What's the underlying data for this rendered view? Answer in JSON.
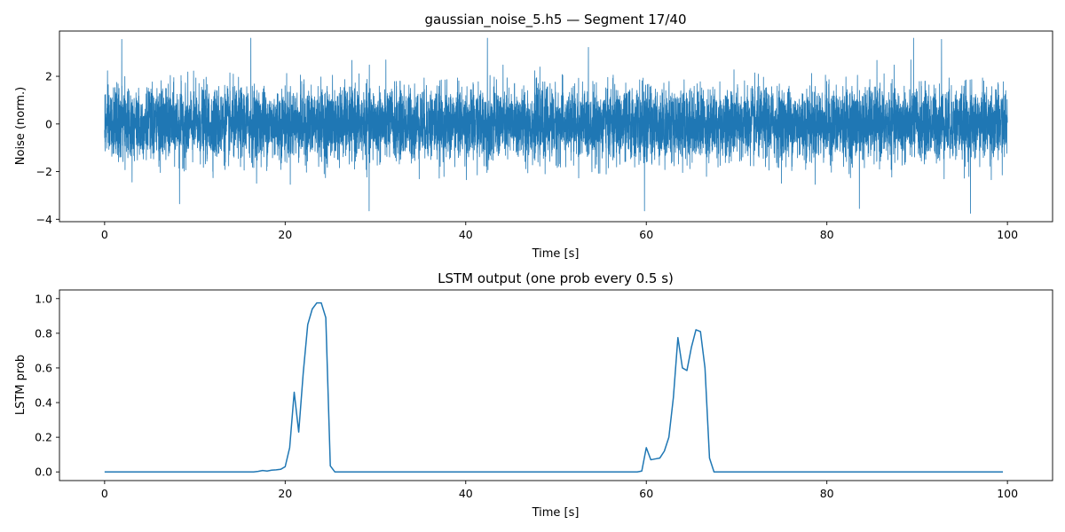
{
  "chart_data": [
    {
      "type": "line",
      "title": "gaussian_noise_5.h5 — Segment 17/40",
      "xlabel": "Time [s]",
      "ylabel": "Noise (norm.)",
      "xlim": [
        -5,
        105
      ],
      "ylim": [
        -4.1,
        3.9
      ],
      "xticks": [
        0,
        20,
        40,
        60,
        80,
        100
      ],
      "yticks": [
        -4,
        -2,
        0,
        2
      ],
      "grid": false,
      "color": "#1f77b4",
      "series": [
        {
          "x_start": 0,
          "x_end": 100,
          "distribution": "gaussian",
          "mean": 0,
          "std": 0.75,
          "min": -3.75,
          "max": 3.6,
          "peaks": [
            {
              "x": 1.9,
              "y": 3.55
            },
            {
              "x": 16.2,
              "y": 3.6
            },
            {
              "x": 42.4,
              "y": 3.6
            },
            {
              "x": 89.6,
              "y": 3.6
            },
            {
              "x": 92.7,
              "y": 3.55
            },
            {
              "x": 29.3,
              "y": -3.65
            },
            {
              "x": 59.8,
              "y": -3.65
            },
            {
              "x": 95.9,
              "y": -3.75
            },
            {
              "x": 83.6,
              "y": -3.55
            },
            {
              "x": 8.3,
              "y": -3.35
            }
          ]
        }
      ]
    },
    {
      "type": "line",
      "title": "LSTM output (one prob every 0.5 s)",
      "xlabel": "Time [s]",
      "ylabel": "LSTM prob",
      "xlim": [
        -5,
        105
      ],
      "ylim": [
        -0.05,
        1.05
      ],
      "xticks": [
        0,
        20,
        40,
        60,
        80,
        100
      ],
      "yticks": [
        0.0,
        0.2,
        0.4,
        0.6,
        0.8,
        1.0
      ],
      "ytick_labels": [
        "0.0",
        "0.2",
        "0.4",
        "0.6",
        "0.8",
        "1.0"
      ],
      "grid": false,
      "color": "#1f77b4",
      "series": [
        {
          "x": [
            0,
            16.5,
            17,
            17.5,
            18,
            18.5,
            19,
            19.5,
            20,
            20.5,
            21,
            21.5,
            22,
            22.5,
            23,
            23.5,
            24,
            24.5,
            25,
            25.5,
            26,
            59,
            59.5,
            60,
            60.5,
            61,
            61.5,
            62,
            62.5,
            63,
            63.5,
            64,
            64.5,
            65,
            65.5,
            66,
            66.5,
            67,
            67.5,
            99.5
          ],
          "y": [
            0.0,
            0.0,
            0.003,
            0.008,
            0.005,
            0.01,
            0.012,
            0.015,
            0.03,
            0.14,
            0.46,
            0.23,
            0.57,
            0.85,
            0.94,
            0.975,
            0.975,
            0.89,
            0.035,
            0.0,
            0.0,
            0.0,
            0.005,
            0.14,
            0.07,
            0.075,
            0.08,
            0.12,
            0.2,
            0.43,
            0.775,
            0.6,
            0.585,
            0.72,
            0.82,
            0.81,
            0.6,
            0.08,
            0.0,
            0.0
          ]
        }
      ]
    }
  ]
}
